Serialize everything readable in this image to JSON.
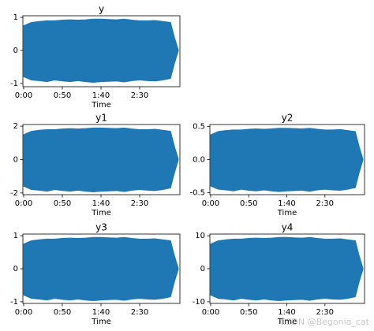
{
  "chart_data": [
    {
      "type": "area",
      "title": "y",
      "xlabel": "Time",
      "x": [
        0,
        10,
        20,
        30,
        40,
        50,
        60,
        70,
        80,
        90,
        100,
        110,
        120,
        130,
        140,
        150,
        160,
        170,
        180,
        190,
        195,
        200
      ],
      "xlim": [
        -1,
        202
      ],
      "xticks": [
        {
          "value": 0,
          "label": "0:00"
        },
        {
          "value": 50,
          "label": "0:50"
        },
        {
          "value": 100,
          "label": "1:40"
        },
        {
          "value": 150,
          "label": "2:30"
        }
      ],
      "ylim": [
        -1.1,
        1.05
      ],
      "yticks": [
        -1,
        0,
        1
      ],
      "series": [
        {
          "color": "#1f77b4",
          "values": [
            0.75,
            0.85,
            0.88,
            0.9,
            0.9,
            0.92,
            0.93,
            0.92,
            0.93,
            0.95,
            0.95,
            0.94,
            0.93,
            0.95,
            0.92,
            0.9,
            0.9,
            0.91,
            0.88,
            0.85,
            0.4,
            0.02
          ]
        },
        {
          "color": "#1f77b4",
          "values": [
            -0.8,
            -0.9,
            -0.92,
            -0.95,
            -0.9,
            -0.93,
            -0.95,
            -0.92,
            -0.95,
            -0.97,
            -0.95,
            -0.94,
            -0.93,
            -0.96,
            -0.92,
            -0.9,
            -0.92,
            -0.93,
            -0.9,
            -0.85,
            -0.4,
            -0.02
          ]
        }
      ]
    },
    {
      "type": "area",
      "title": "y1",
      "xlabel": "Time",
      "x": [
        0,
        10,
        20,
        30,
        40,
        50,
        60,
        70,
        80,
        90,
        100,
        110,
        120,
        130,
        140,
        150,
        160,
        170,
        180,
        190,
        195,
        200
      ],
      "xlim": [
        -1,
        202
      ],
      "xticks": [
        {
          "value": 0,
          "label": "0:00"
        },
        {
          "value": 50,
          "label": "0:50"
        },
        {
          "value": 100,
          "label": "1:40"
        },
        {
          "value": 150,
          "label": "2:30"
        }
      ],
      "ylim": [
        -2.1,
        2.1
      ],
      "yticks": [
        -2,
        0,
        2
      ],
      "series": [
        {
          "color": "#1f77b4",
          "values": [
            1.5,
            1.7,
            1.76,
            1.8,
            1.8,
            1.84,
            1.86,
            1.84,
            1.86,
            1.9,
            1.9,
            1.88,
            1.86,
            1.9,
            1.84,
            1.8,
            1.8,
            1.82,
            1.76,
            1.7,
            0.8,
            0.04
          ]
        },
        {
          "color": "#1f77b4",
          "values": [
            -1.6,
            -1.8,
            -1.84,
            -1.9,
            -1.8,
            -1.86,
            -1.9,
            -1.84,
            -1.9,
            -1.94,
            -1.9,
            -1.88,
            -1.86,
            -1.92,
            -1.84,
            -1.8,
            -1.84,
            -1.86,
            -1.8,
            -1.7,
            -0.8,
            -0.04
          ]
        }
      ]
    },
    {
      "type": "area",
      "title": "y2",
      "xlabel": "Time",
      "x": [
        0,
        10,
        20,
        30,
        40,
        50,
        60,
        70,
        80,
        90,
        100,
        110,
        120,
        130,
        140,
        150,
        160,
        170,
        180,
        190,
        195,
        200
      ],
      "xlim": [
        -1,
        202
      ],
      "xticks": [
        {
          "value": 0,
          "label": "0:00"
        },
        {
          "value": 50,
          "label": "0:50"
        },
        {
          "value": 100,
          "label": "1:40"
        },
        {
          "value": 150,
          "label": "2:30"
        }
      ],
      "ylim": [
        -0.53,
        0.53
      ],
      "yticks": [
        -0.5,
        {
          "value": 0,
          "label": "0.0"
        },
        0.5
      ],
      "series": [
        {
          "color": "#1f77b4",
          "values": [
            0.375,
            0.425,
            0.44,
            0.45,
            0.45,
            0.46,
            0.465,
            0.46,
            0.465,
            0.475,
            0.475,
            0.47,
            0.465,
            0.475,
            0.46,
            0.45,
            0.45,
            0.455,
            0.44,
            0.425,
            0.2,
            0.01
          ]
        },
        {
          "color": "#1f77b4",
          "values": [
            -0.4,
            -0.45,
            -0.46,
            -0.475,
            -0.45,
            -0.465,
            -0.475,
            -0.46,
            -0.475,
            -0.485,
            -0.475,
            -0.47,
            -0.465,
            -0.48,
            -0.46,
            -0.45,
            -0.46,
            -0.465,
            -0.45,
            -0.425,
            -0.2,
            -0.01
          ]
        }
      ]
    },
    {
      "type": "area",
      "title": "y3",
      "xlabel": "Time",
      "x": [
        0,
        10,
        20,
        30,
        40,
        50,
        60,
        70,
        80,
        90,
        100,
        110,
        120,
        130,
        140,
        150,
        160,
        170,
        180,
        190,
        195,
        200
      ],
      "xlim": [
        -1,
        202
      ],
      "xticks": [
        {
          "value": 0,
          "label": "0:00"
        },
        {
          "value": 50,
          "label": "0:50"
        },
        {
          "value": 100,
          "label": "1:40"
        },
        {
          "value": 150,
          "label": "2:30"
        }
      ],
      "ylim": [
        -1.05,
        1.05
      ],
      "yticks": [
        -1,
        0,
        1
      ],
      "series": [
        {
          "color": "#1f77b4",
          "values": [
            0.75,
            0.85,
            0.88,
            0.9,
            0.9,
            0.92,
            0.93,
            0.92,
            0.93,
            0.95,
            0.95,
            0.94,
            0.93,
            0.95,
            0.92,
            0.9,
            0.9,
            0.91,
            0.88,
            0.85,
            0.4,
            0.02
          ]
        },
        {
          "color": "#1f77b4",
          "values": [
            -0.8,
            -0.9,
            -0.92,
            -0.95,
            -0.9,
            -0.93,
            -0.95,
            -0.92,
            -0.95,
            -0.97,
            -0.95,
            -0.94,
            -0.93,
            -0.96,
            -0.92,
            -0.9,
            -0.92,
            -0.93,
            -0.9,
            -0.85,
            -0.4,
            -0.02
          ]
        }
      ]
    },
    {
      "type": "area",
      "title": "y4",
      "xlabel": "Time",
      "x": [
        0,
        10,
        20,
        30,
        40,
        50,
        60,
        70,
        80,
        90,
        100,
        110,
        120,
        130,
        140,
        150,
        160,
        170,
        180,
        190,
        195,
        200
      ],
      "xlim": [
        -1,
        202
      ],
      "xticks": [
        {
          "value": 0,
          "label": "0:00"
        },
        {
          "value": 50,
          "label": "0:50"
        },
        {
          "value": 100,
          "label": "1:40"
        },
        {
          "value": 150,
          "label": "2:30"
        }
      ],
      "ylim": [
        -10.5,
        10.5
      ],
      "yticks": [
        -10,
        0,
        10
      ],
      "series": [
        {
          "color": "#1f77b4",
          "values": [
            7.5,
            8.5,
            8.8,
            9,
            9,
            9.2,
            9.3,
            9.2,
            9.3,
            9.5,
            9.5,
            9.4,
            9.3,
            9.5,
            9.2,
            9,
            9,
            9.1,
            8.8,
            8.5,
            4,
            0.2
          ]
        },
        {
          "color": "#1f77b4",
          "values": [
            -8,
            -9,
            -9.2,
            -9.5,
            -9,
            -9.3,
            -9.5,
            -9.2,
            -9.5,
            -9.7,
            -9.5,
            -9.4,
            -9.3,
            -9.6,
            -9.2,
            -9,
            -9.2,
            -9.3,
            -9,
            -8.5,
            -4,
            -0.2
          ]
        }
      ]
    }
  ],
  "watermark": "CSDN @Begonia_cat"
}
